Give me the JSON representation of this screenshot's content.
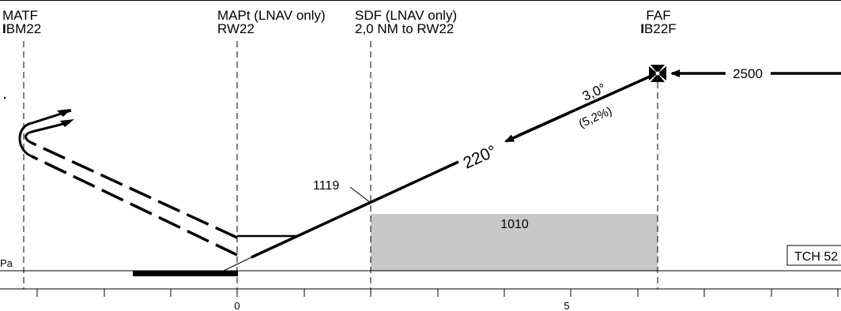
{
  "fixes": {
    "matf": {
      "name": "MATF",
      "ident": "IBM22"
    },
    "mapt": {
      "name": "MAPt (LNAV only)",
      "ident": "RW22"
    },
    "sdf": {
      "name": "SDF (LNAV only)",
      "ident": "2,0 NM to RW22"
    },
    "faf": {
      "name": "FAF",
      "ident": "IB22F"
    }
  },
  "glidepath": {
    "angle": "3,0°",
    "gradient": "(5,2%)",
    "course": "220°"
  },
  "altitudes": {
    "faf_altitude": "2500",
    "sdf_altitude": "1119",
    "step_altitude": "1010"
  },
  "tch_label": "TCH 52",
  "elevation_label": "Pa",
  "scale": {
    "label_zero": "0",
    "label_five": "5"
  },
  "colors": {
    "line": "#000000",
    "shaded_area": "#c8c8c8"
  }
}
